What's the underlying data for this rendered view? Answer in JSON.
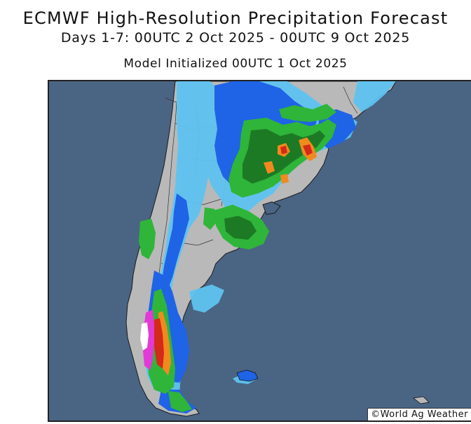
{
  "header": {
    "title": "ECMWF High-Resolution Precipitation Forecast",
    "subtitle": "Days 1-7: 00UTC 2 Oct 2025 - 00UTC 9 Oct 2025",
    "init_line": "Model Initialized 00UTC 1 Oct 2025"
  },
  "map": {
    "region": "South America - Argentina, Chile, Uruguay, southern Brazil",
    "colors": {
      "ocean": "#4a6484",
      "land": "#b9b9b9",
      "light_blue": "#5fc3f0",
      "blue": "#1f63e6",
      "dark_blue": "#1438b4",
      "green": "#2fb53a",
      "dark_green": "#1c7a24",
      "orange": "#f08a1e",
      "red": "#d42a1a",
      "magenta": "#e23ad6",
      "white": "#ffffff"
    }
  },
  "footer": {
    "copyright": "©World Ag Weather"
  }
}
